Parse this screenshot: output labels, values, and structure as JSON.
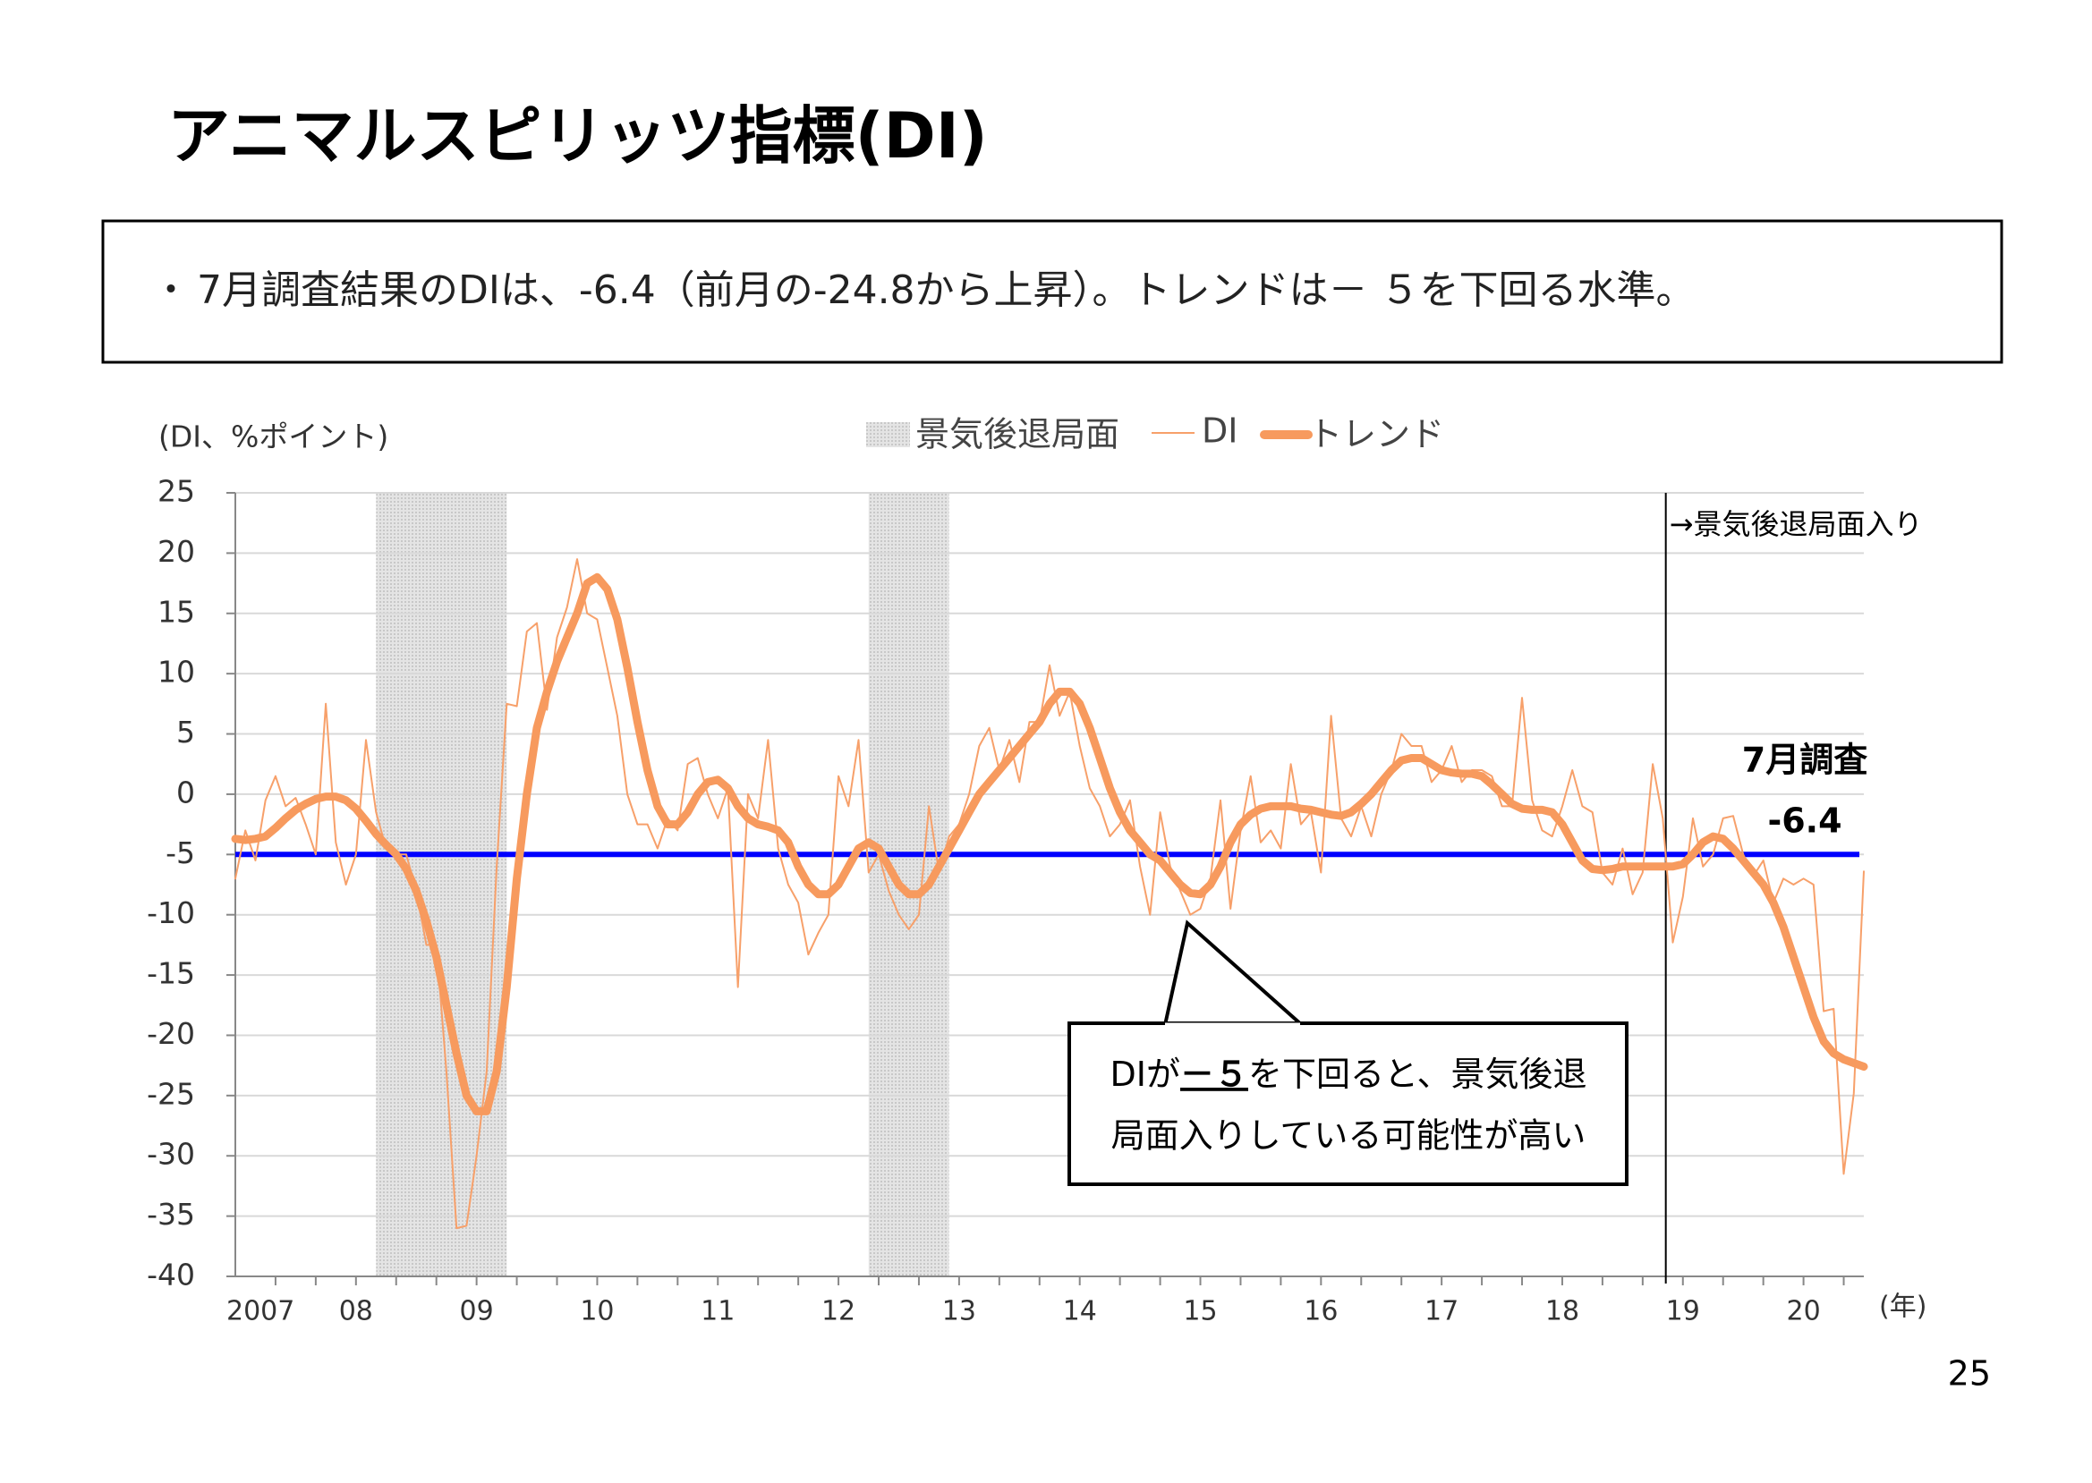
{
  "header": {
    "title": "アニマルスピリッツ指標(DI)"
  },
  "summary": {
    "bullet": "・",
    "text": "7月調査結果のDIは、-6.4（前月の-24.8から上昇）。トレンドは－ ５を下回る水準。"
  },
  "chart_data": {
    "type": "line",
    "y_label": "(DI、%ポイント)",
    "x_unit": "(年)",
    "categories": [
      "2007",
      null,
      null,
      null,
      null,
      null,
      null,
      null,
      null,
      null,
      null,
      null,
      "08",
      null,
      null,
      null,
      null,
      null,
      null,
      null,
      null,
      null,
      null,
      null,
      "09",
      null,
      null,
      null,
      null,
      null,
      null,
      null,
      null,
      null,
      null,
      null,
      "10",
      null,
      null,
      null,
      null,
      null,
      null,
      null,
      null,
      null,
      null,
      null,
      "11",
      null,
      null,
      null,
      null,
      null,
      null,
      null,
      null,
      null,
      null,
      null,
      "12",
      null,
      null,
      null,
      null,
      null,
      null,
      null,
      null,
      null,
      null,
      null,
      "13",
      null,
      null,
      null,
      null,
      null,
      null,
      null,
      null,
      null,
      null,
      null,
      "14",
      null,
      null,
      null,
      null,
      null,
      null,
      null,
      null,
      null,
      null,
      null,
      "15",
      null,
      null,
      null,
      null,
      null,
      null,
      null,
      null,
      null,
      null,
      null,
      "16",
      null,
      null,
      null,
      null,
      null,
      null,
      null,
      null,
      null,
      null,
      null,
      "17",
      null,
      null,
      null,
      null,
      null,
      null,
      null,
      null,
      null,
      null,
      null,
      "18",
      null,
      null,
      null,
      null,
      null,
      null,
      null,
      null,
      null,
      null,
      null,
      "19",
      null,
      null,
      null,
      null,
      null,
      null,
      null,
      null,
      null,
      null,
      null,
      "20",
      null,
      null,
      null,
      null,
      null,
      null
    ],
    "series": [
      {
        "name": "DI",
        "color": "#f7a06a",
        "values": [
          -7,
          -3,
          -5.5,
          -0.5,
          1.5,
          -1,
          -0.3,
          -2.5,
          -5,
          7.5,
          -4,
          -7.5,
          -5,
          4.5,
          -1.5,
          -4.5,
          -5,
          -5,
          -8,
          -12.5,
          -12.5,
          -23,
          -36,
          -35.8,
          -30,
          -23,
          -6,
          7.5,
          7.3,
          13.5,
          14.2,
          7,
          13,
          15.5,
          19.5,
          15,
          14.5,
          10.5,
          6.5,
          0,
          -2.5,
          -2.5,
          -4.5,
          -2,
          -3,
          2.5,
          3,
          0,
          -2,
          0.5,
          -16,
          0,
          -2,
          4.5,
          -4.5,
          -7.5,
          -9,
          -13.3,
          -11.5,
          -10,
          1.5,
          -1,
          4.5,
          -6.5,
          -5,
          -8,
          -10,
          -11.2,
          -10,
          -1,
          -6.5,
          -3.5,
          -2.5,
          0,
          4,
          5.5,
          2,
          4.5,
          1,
          6,
          6,
          10.7,
          6.5,
          8.5,
          4,
          0.5,
          -1,
          -3.5,
          -2.5,
          -0.5,
          -6,
          -10,
          -1.5,
          -6,
          -8,
          -10,
          -9.5,
          -7,
          -0.5,
          -9.5,
          -3,
          1.5,
          -4,
          -3,
          -4.5,
          2.5,
          -2.5,
          -1.5,
          -6.5,
          6.5,
          -2,
          -3.5,
          -1,
          -3.5,
          0,
          2,
          5,
          4,
          4,
          1,
          2,
          4,
          1,
          2,
          2,
          1.5,
          -1,
          -1,
          8,
          -0.5,
          -3,
          -3.5,
          -1,
          2,
          -1,
          -1.5,
          -6.5,
          -7.5,
          -4.5,
          -8.3,
          -6.5,
          2.5,
          -2,
          -12.3,
          -8.5,
          -2,
          -6,
          -5,
          -2,
          -1.8,
          -5,
          -6.8,
          -5.5,
          -9,
          -7,
          -7.5,
          -7,
          -7.5,
          -18,
          -17.8,
          -31.5,
          -24.8,
          -6.4
        ]
      },
      {
        "name": "トレンド",
        "color": "#f79a5e",
        "values": [
          -3.7,
          -3.8,
          -3.7,
          -3.5,
          -2.8,
          -2,
          -1.3,
          -0.8,
          -0.4,
          -0.2,
          -0.2,
          -0.5,
          -1.2,
          -2.2,
          -3.3,
          -4.2,
          -5,
          -6.2,
          -8,
          -10.5,
          -13.5,
          -17.5,
          -21.5,
          -25,
          -26.3,
          -26.3,
          -23,
          -16,
          -7,
          0,
          5.5,
          8.5,
          11,
          13,
          15,
          17.5,
          18,
          17,
          14.5,
          10.5,
          6,
          2,
          -1,
          -2.5,
          -2.5,
          -1.5,
          0,
          1,
          1.2,
          0.5,
          -1,
          -2,
          -2.5,
          -2.7,
          -3,
          -4,
          -6,
          -7.5,
          -8.3,
          -8.3,
          -7.5,
          -6,
          -4.5,
          -4,
          -4.5,
          -6,
          -7.5,
          -8.3,
          -8.3,
          -7.5,
          -6,
          -4.5,
          -3,
          -1.5,
          0,
          1,
          2,
          3,
          4,
          5,
          6,
          7.5,
          8.5,
          8.5,
          7.5,
          5.5,
          3,
          0.5,
          -1.5,
          -3,
          -4,
          -5,
          -5.5,
          -6.5,
          -7.5,
          -8.2,
          -8.3,
          -7.5,
          -6,
          -4,
          -2.5,
          -1.7,
          -1.2,
          -1,
          -1,
          -1,
          -1.2,
          -1.3,
          -1.5,
          -1.7,
          -1.8,
          -1.5,
          -0.8,
          0,
          1,
          2,
          2.8,
          3,
          3,
          2.5,
          2,
          1.8,
          1.7,
          1.7,
          1.5,
          0.8,
          0,
          -0.8,
          -1.2,
          -1.3,
          -1.3,
          -1.5,
          -2.5,
          -4,
          -5.5,
          -6.2,
          -6.3,
          -6.2,
          -6,
          -6,
          -6,
          -6,
          -6,
          -6,
          -5.8,
          -5,
          -4,
          -3.5,
          -3.7,
          -4.5,
          -5.5,
          -6.5,
          -7.5,
          -9,
          -11,
          -13.5,
          -16,
          -18.5,
          -20.5,
          -21.5,
          -22,
          -22.3,
          -22.6
        ]
      }
    ],
    "ylim": [
      -40,
      25
    ],
    "yticks": [
      -40,
      -35,
      -30,
      -25,
      -20,
      -15,
      -10,
      -5,
      0,
      5,
      10,
      15,
      20,
      25
    ],
    "grid": true,
    "shaded_ranges": {
      "name": "景気後退局面",
      "ranges": [
        [
          14,
          27
        ],
        [
          63,
          71
        ]
      ]
    },
    "reference_line": {
      "value": -5,
      "color": "#0000ff"
    },
    "vline": {
      "x": 142.3,
      "label": "→景気後退局面入り"
    },
    "annotation": {
      "title": "7月調査",
      "value": "-6.4"
    },
    "callout": {
      "parts": [
        "DIが",
        "－５",
        "を下回ると、景気後退"
      ],
      "line2": "局面入りしている可能性が高い"
    }
  },
  "page_number": "25"
}
